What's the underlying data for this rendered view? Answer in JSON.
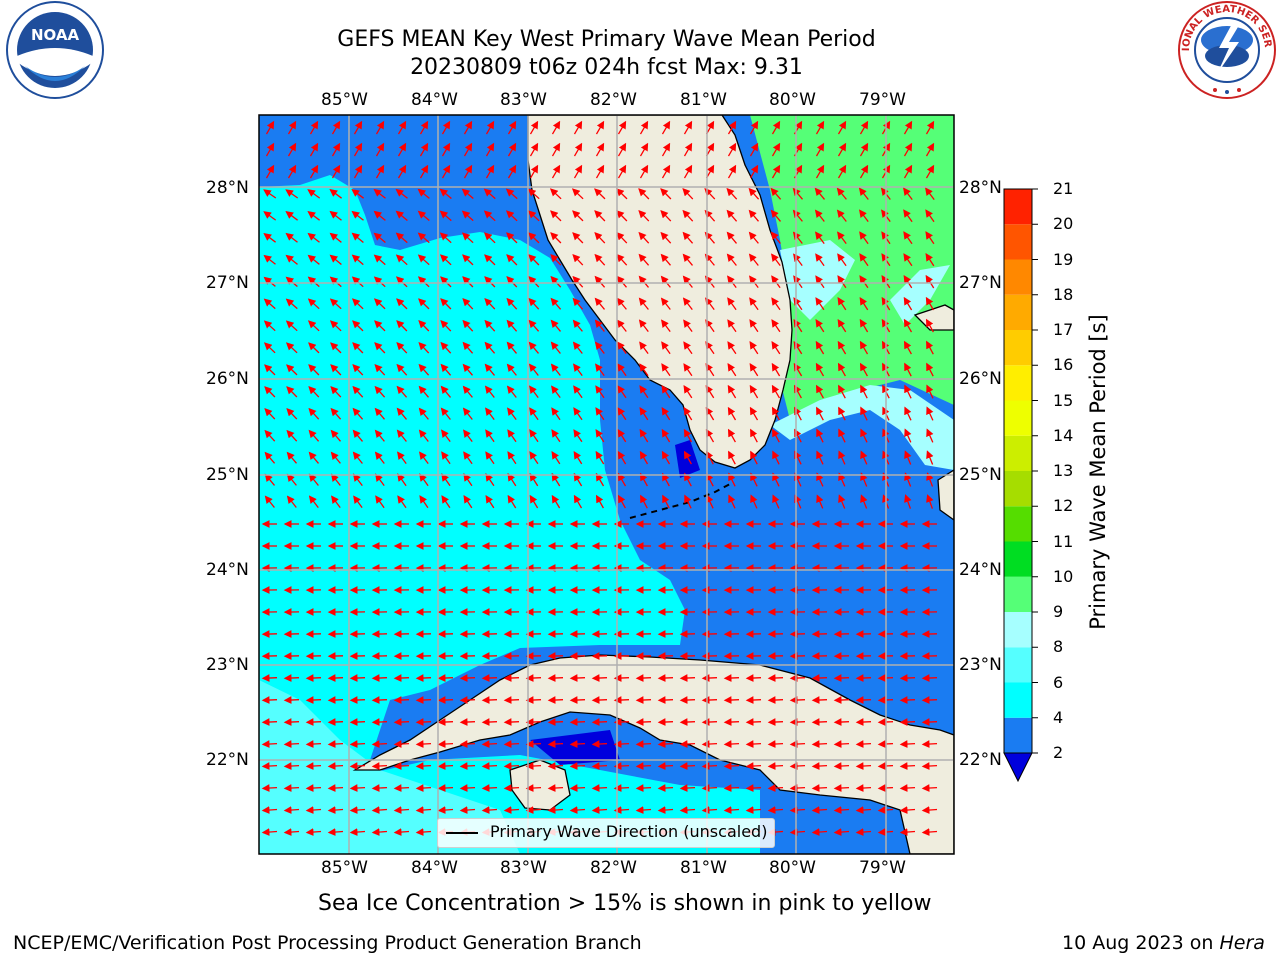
{
  "header": {
    "title_line1": "GEFS MEAN Key West Primary Wave Mean Period",
    "title_line2": "20230809 t06z 024h fcst   Max: 9.31"
  },
  "logos": {
    "left_icon": "noaa-logo",
    "left_text": "NOAA",
    "right_icon": "nws-logo",
    "right_text": "NATIONAL WEATHER SERVICE"
  },
  "map": {
    "lon_labels": [
      "85°W",
      "84°W",
      "83°W",
      "82°W",
      "81°W",
      "80°W",
      "79°W"
    ],
    "lat_labels": [
      "28°N",
      "27°N",
      "26°N",
      "25°N",
      "24°N",
      "23°N",
      "22°N"
    ],
    "legend_label": "Primary Wave Direction (unscaled)",
    "colors": {
      "land": "#efedde",
      "band_2_4": "#1a7cf2",
      "band_4_6": "#00ffff",
      "band_6_8": "#55ffff",
      "band_8_9": "#a6ffff",
      "band_9_10": "#55ff77",
      "below_2": "#0000dd",
      "arrow": "#ff0000",
      "grid": "#b0b0b0"
    }
  },
  "colorbar": {
    "label": "Primary Wave Mean Period [s]",
    "ticks": [
      "2",
      "4",
      "6",
      "8",
      "9",
      "10",
      "11",
      "12",
      "13",
      "14",
      "15",
      "16",
      "17",
      "18",
      "19",
      "20",
      "21"
    ],
    "colors": [
      "#1a7cf2",
      "#00ffff",
      "#55ffff",
      "#a6ffff",
      "#55ff77",
      "#00dd22",
      "#55dd00",
      "#a6dd00",
      "#ccee00",
      "#eeff00",
      "#ffee00",
      "#ffcc00",
      "#ffaa00",
      "#ff8800",
      "#ff5500",
      "#ff2200"
    ],
    "under_color": "#0000dd"
  },
  "footer": {
    "note": "Sea Ice Concentration > 15% is shown in pink to yellow",
    "left": "NCEP/EMC/Verification Post Processing Product Generation Branch",
    "right_date": "10 Aug 2023 on ",
    "right_host": "Hera"
  }
}
